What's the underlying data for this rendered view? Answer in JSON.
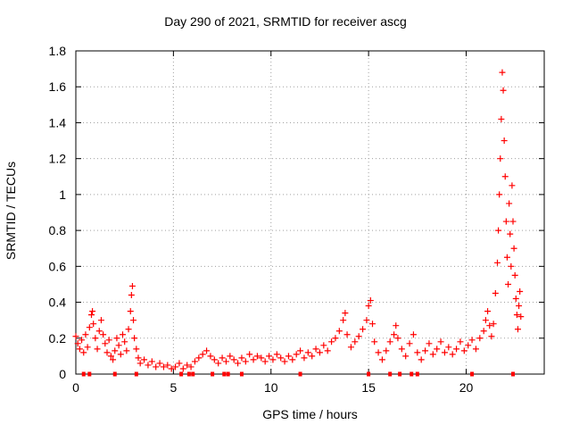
{
  "chart_data": {
    "type": "scatter",
    "title": "Day 290 of 2021, SRMTID for receiver ascg",
    "xlabel": "GPS time / hours",
    "ylabel": "SRMTID / TECUs",
    "xlim": [
      0,
      24
    ],
    "ylim": [
      0,
      1.8
    ],
    "xticks": [
      0,
      5,
      10,
      15,
      20
    ],
    "xtick_labels": [
      "0",
      "5",
      "10",
      "15",
      "20"
    ],
    "yticks": [
      0,
      0.2,
      0.4,
      0.6,
      0.8,
      1.0,
      1.2,
      1.4,
      1.6,
      1.8
    ],
    "ytick_labels": [
      "0",
      "0.2",
      "0.4",
      "0.6",
      "0.8",
      "1",
      "1.2",
      "1.4",
      "1.6",
      "1.8"
    ],
    "grid": true,
    "marker": "plus",
    "color": "#ff0000",
    "series": [
      {
        "name": "SRMTID",
        "points": [
          [
            0.0,
            0.21
          ],
          [
            0.1,
            0.17
          ],
          [
            0.2,
            0.14
          ],
          [
            0.3,
            0.19
          ],
          [
            0.4,
            0.12
          ],
          [
            0.5,
            0.22
          ],
          [
            0.6,
            0.15
          ],
          [
            0.7,
            0.26
          ],
          [
            0.8,
            0.33
          ],
          [
            0.85,
            0.35
          ],
          [
            0.9,
            0.28
          ],
          [
            1.0,
            0.2
          ],
          [
            1.1,
            0.14
          ],
          [
            1.2,
            0.24
          ],
          [
            1.3,
            0.3
          ],
          [
            1.4,
            0.22
          ],
          [
            1.5,
            0.17
          ],
          [
            1.6,
            0.12
          ],
          [
            1.7,
            0.19
          ],
          [
            1.8,
            0.1
          ],
          [
            1.9,
            0.08
          ],
          [
            2.0,
            0.13
          ],
          [
            2.1,
            0.2
          ],
          [
            2.2,
            0.16
          ],
          [
            2.3,
            0.11
          ],
          [
            2.4,
            0.22
          ],
          [
            2.5,
            0.18
          ],
          [
            2.6,
            0.13
          ],
          [
            2.7,
            0.25
          ],
          [
            2.8,
            0.35
          ],
          [
            2.85,
            0.44
          ],
          [
            2.9,
            0.49
          ],
          [
            2.95,
            0.3
          ],
          [
            3.0,
            0.2
          ],
          [
            3.1,
            0.14
          ],
          [
            3.2,
            0.09
          ],
          [
            3.3,
            0.06
          ],
          [
            3.5,
            0.08
          ],
          [
            3.7,
            0.05
          ],
          [
            3.9,
            0.07
          ],
          [
            4.1,
            0.04
          ],
          [
            4.3,
            0.06
          ],
          [
            4.5,
            0.04
          ],
          [
            4.7,
            0.05
          ],
          [
            4.9,
            0.03
          ],
          [
            5.1,
            0.04
          ],
          [
            5.3,
            0.06
          ],
          [
            5.5,
            0.03
          ],
          [
            5.7,
            0.05
          ],
          [
            5.9,
            0.04
          ],
          [
            6.1,
            0.07
          ],
          [
            6.3,
            0.09
          ],
          [
            6.5,
            0.11
          ],
          [
            6.7,
            0.13
          ],
          [
            6.9,
            0.1
          ],
          [
            7.1,
            0.08
          ],
          [
            7.3,
            0.06
          ],
          [
            7.5,
            0.09
          ],
          [
            7.7,
            0.07
          ],
          [
            7.9,
            0.1
          ],
          [
            8.1,
            0.08
          ],
          [
            8.3,
            0.06
          ],
          [
            8.5,
            0.09
          ],
          [
            8.7,
            0.07
          ],
          [
            8.9,
            0.11
          ],
          [
            9.1,
            0.08
          ],
          [
            9.3,
            0.1
          ],
          [
            9.5,
            0.09
          ],
          [
            9.7,
            0.07
          ],
          [
            9.9,
            0.1
          ],
          [
            10.1,
            0.08
          ],
          [
            10.3,
            0.11
          ],
          [
            10.5,
            0.09
          ],
          [
            10.7,
            0.07
          ],
          [
            10.9,
            0.1
          ],
          [
            11.1,
            0.08
          ],
          [
            11.3,
            0.11
          ],
          [
            11.5,
            0.13
          ],
          [
            11.7,
            0.09
          ],
          [
            11.9,
            0.12
          ],
          [
            12.1,
            0.1
          ],
          [
            12.3,
            0.14
          ],
          [
            12.5,
            0.12
          ],
          [
            12.7,
            0.16
          ],
          [
            12.9,
            0.13
          ],
          [
            13.1,
            0.18
          ],
          [
            13.3,
            0.2
          ],
          [
            13.5,
            0.24
          ],
          [
            13.7,
            0.3
          ],
          [
            13.8,
            0.34
          ],
          [
            13.9,
            0.22
          ],
          [
            14.1,
            0.15
          ],
          [
            14.3,
            0.18
          ],
          [
            14.5,
            0.21
          ],
          [
            14.7,
            0.25
          ],
          [
            14.9,
            0.3
          ],
          [
            15.0,
            0.38
          ],
          [
            15.1,
            0.41
          ],
          [
            15.2,
            0.28
          ],
          [
            15.3,
            0.18
          ],
          [
            15.5,
            0.12
          ],
          [
            15.7,
            0.08
          ],
          [
            15.9,
            0.13
          ],
          [
            16.1,
            0.18
          ],
          [
            16.3,
            0.22
          ],
          [
            16.4,
            0.27
          ],
          [
            16.5,
            0.2
          ],
          [
            16.7,
            0.14
          ],
          [
            16.9,
            0.1
          ],
          [
            17.1,
            0.17
          ],
          [
            17.3,
            0.22
          ],
          [
            17.5,
            0.12
          ],
          [
            17.7,
            0.08
          ],
          [
            17.9,
            0.13
          ],
          [
            18.1,
            0.17
          ],
          [
            18.3,
            0.11
          ],
          [
            18.5,
            0.14
          ],
          [
            18.7,
            0.18
          ],
          [
            18.9,
            0.12
          ],
          [
            19.1,
            0.15
          ],
          [
            19.3,
            0.11
          ],
          [
            19.5,
            0.14
          ],
          [
            19.7,
            0.18
          ],
          [
            19.9,
            0.13
          ],
          [
            20.1,
            0.16
          ],
          [
            20.3,
            0.19
          ],
          [
            20.5,
            0.14
          ],
          [
            20.7,
            0.2
          ],
          [
            20.9,
            0.24
          ],
          [
            21.0,
            0.3
          ],
          [
            21.1,
            0.35
          ],
          [
            21.2,
            0.27
          ],
          [
            21.3,
            0.21
          ],
          [
            21.4,
            0.28
          ],
          [
            21.5,
            0.45
          ],
          [
            21.6,
            0.62
          ],
          [
            21.65,
            0.8
          ],
          [
            21.7,
            1.0
          ],
          [
            21.75,
            1.2
          ],
          [
            21.8,
            1.42
          ],
          [
            21.85,
            1.68
          ],
          [
            21.9,
            1.58
          ],
          [
            21.95,
            1.3
          ],
          [
            22.0,
            1.1
          ],
          [
            22.05,
            0.85
          ],
          [
            22.1,
            0.65
          ],
          [
            22.15,
            0.5
          ],
          [
            22.2,
            0.95
          ],
          [
            22.25,
            0.78
          ],
          [
            22.3,
            0.6
          ],
          [
            22.35,
            1.05
          ],
          [
            22.4,
            0.85
          ],
          [
            22.45,
            0.7
          ],
          [
            22.5,
            0.55
          ],
          [
            22.55,
            0.42
          ],
          [
            22.6,
            0.33
          ],
          [
            22.65,
            0.25
          ],
          [
            22.7,
            0.38
          ],
          [
            22.75,
            0.46
          ],
          [
            22.8,
            0.32
          ]
        ]
      }
    ],
    "data_gaps_marker_x": [
      0.4,
      0.7,
      2.0,
      3.1,
      5.4,
      5.8,
      6.0,
      7.0,
      7.6,
      7.8,
      8.5,
      11.5,
      15.0,
      16.1,
      16.6,
      17.2,
      17.5,
      20.3,
      22.4
    ]
  }
}
